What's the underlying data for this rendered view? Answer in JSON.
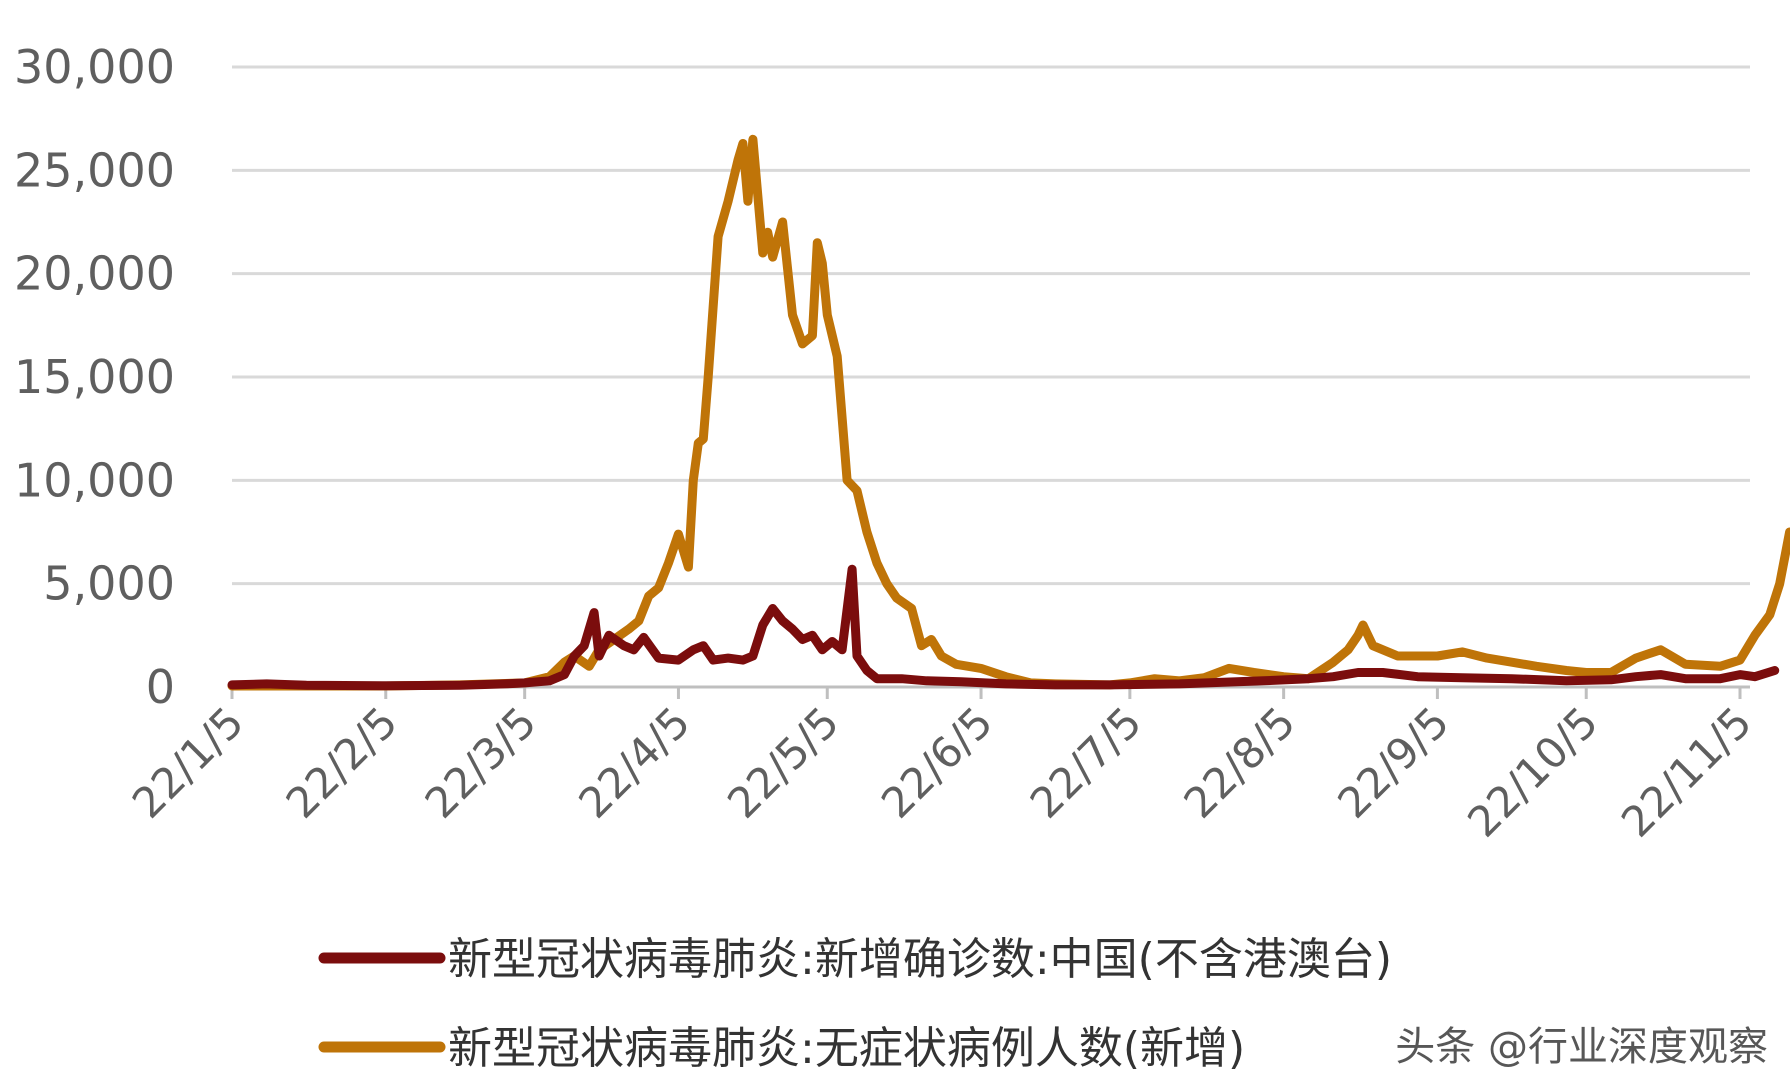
{
  "chart_data": {
    "type": "line",
    "title": "",
    "xlabel": "",
    "ylabel": "",
    "ylim": [
      0,
      30000
    ],
    "y_ticks": [
      "30,000",
      "25,000",
      "20,000",
      "15,000",
      "10,000",
      "5,000",
      "0"
    ],
    "y_tick_values": [
      30000,
      25000,
      20000,
      15000,
      10000,
      5000,
      0
    ],
    "x_tick_labels": [
      "22/1/5",
      "22/2/5",
      "22/3/5",
      "22/4/5",
      "22/5/5",
      "22/6/5",
      "22/7/5",
      "22/8/5",
      "22/9/5",
      "22/10/5",
      "22/11/5"
    ],
    "x_tick_dates": [
      "2022-01-05",
      "2022-02-05",
      "2022-03-05",
      "2022-04-05",
      "2022-05-05",
      "2022-06-05",
      "2022-07-05",
      "2022-08-05",
      "2022-09-05",
      "2022-10-05",
      "2022-11-05"
    ],
    "grid": "horizontal",
    "legend_position": "bottom",
    "series": [
      {
        "name": "新型冠状病毒肺炎:新增确诊数:中国(不含港澳台)",
        "color": "#7b0d0d",
        "points": [
          [
            "2022-01-05",
            100
          ],
          [
            "2022-01-12",
            150
          ],
          [
            "2022-01-20",
            80
          ],
          [
            "2022-02-05",
            60
          ],
          [
            "2022-02-20",
            80
          ],
          [
            "2022-03-01",
            150
          ],
          [
            "2022-03-05",
            200
          ],
          [
            "2022-03-10",
            300
          ],
          [
            "2022-03-13",
            600
          ],
          [
            "2022-03-15",
            1500
          ],
          [
            "2022-03-17",
            2000
          ],
          [
            "2022-03-19",
            3600
          ],
          [
            "2022-03-20",
            1500
          ],
          [
            "2022-03-22",
            2500
          ],
          [
            "2022-03-25",
            2000
          ],
          [
            "2022-03-27",
            1800
          ],
          [
            "2022-03-29",
            2400
          ],
          [
            "2022-04-01",
            1400
          ],
          [
            "2022-04-05",
            1300
          ],
          [
            "2022-04-08",
            1800
          ],
          [
            "2022-04-10",
            2000
          ],
          [
            "2022-04-12",
            1300
          ],
          [
            "2022-04-15",
            1400
          ],
          [
            "2022-04-18",
            1300
          ],
          [
            "2022-04-20",
            1500
          ],
          [
            "2022-04-22",
            3000
          ],
          [
            "2022-04-24",
            3800
          ],
          [
            "2022-04-26",
            3200
          ],
          [
            "2022-04-28",
            2800
          ],
          [
            "2022-04-30",
            2300
          ],
          [
            "2022-05-02",
            2500
          ],
          [
            "2022-05-04",
            1800
          ],
          [
            "2022-05-06",
            2200
          ],
          [
            "2022-05-08",
            1800
          ],
          [
            "2022-05-10",
            5700
          ],
          [
            "2022-05-11",
            1500
          ],
          [
            "2022-05-13",
            800
          ],
          [
            "2022-05-15",
            400
          ],
          [
            "2022-05-20",
            400
          ],
          [
            "2022-05-25",
            300
          ],
          [
            "2022-06-01",
            250
          ],
          [
            "2022-06-10",
            150
          ],
          [
            "2022-06-20",
            100
          ],
          [
            "2022-07-01",
            100
          ],
          [
            "2022-07-15",
            150
          ],
          [
            "2022-08-01",
            300
          ],
          [
            "2022-08-10",
            400
          ],
          [
            "2022-08-15",
            500
          ],
          [
            "2022-08-20",
            700
          ],
          [
            "2022-08-25",
            700
          ],
          [
            "2022-09-01",
            500
          ],
          [
            "2022-09-10",
            450
          ],
          [
            "2022-09-20",
            400
          ],
          [
            "2022-10-01",
            300
          ],
          [
            "2022-10-10",
            350
          ],
          [
            "2022-10-15",
            500
          ],
          [
            "2022-10-20",
            600
          ],
          [
            "2022-10-25",
            400
          ],
          [
            "2022-11-01",
            400
          ],
          [
            "2022-11-05",
            600
          ],
          [
            "2022-11-08",
            500
          ],
          [
            "2022-11-12",
            800
          ]
        ]
      },
      {
        "name": "新型冠状病毒肺炎:无症状病例人数(新增)",
        "color": "#bf7408",
        "points": [
          [
            "2022-01-05",
            50
          ],
          [
            "2022-02-05",
            50
          ],
          [
            "2022-02-20",
            100
          ],
          [
            "2022-03-05",
            200
          ],
          [
            "2022-03-10",
            500
          ],
          [
            "2022-03-13",
            1200
          ],
          [
            "2022-03-15",
            1500
          ],
          [
            "2022-03-18",
            1000
          ],
          [
            "2022-03-20",
            1800
          ],
          [
            "2022-03-23",
            2300
          ],
          [
            "2022-03-26",
            2800
          ],
          [
            "2022-03-28",
            3200
          ],
          [
            "2022-03-30",
            4400
          ],
          [
            "2022-04-01",
            4800
          ],
          [
            "2022-04-03",
            6000
          ],
          [
            "2022-04-05",
            7400
          ],
          [
            "2022-04-07",
            5800
          ],
          [
            "2022-04-08",
            10000
          ],
          [
            "2022-04-09",
            11800
          ],
          [
            "2022-04-10",
            12000
          ],
          [
            "2022-04-11",
            15000
          ],
          [
            "2022-04-13",
            21800
          ],
          [
            "2022-04-15",
            23500
          ],
          [
            "2022-04-17",
            25500
          ],
          [
            "2022-04-18",
            26300
          ],
          [
            "2022-04-19",
            23500
          ],
          [
            "2022-04-20",
            26500
          ],
          [
            "2022-04-22",
            21000
          ],
          [
            "2022-04-23",
            22000
          ],
          [
            "2022-04-24",
            20800
          ],
          [
            "2022-04-26",
            22500
          ],
          [
            "2022-04-28",
            18000
          ],
          [
            "2022-04-30",
            16600
          ],
          [
            "2022-05-02",
            17000
          ],
          [
            "2022-05-03",
            21500
          ],
          [
            "2022-05-04",
            20500
          ],
          [
            "2022-05-05",
            18000
          ],
          [
            "2022-05-07",
            16000
          ],
          [
            "2022-05-09",
            10000
          ],
          [
            "2022-05-11",
            9500
          ],
          [
            "2022-05-13",
            7500
          ],
          [
            "2022-05-15",
            6000
          ],
          [
            "2022-05-17",
            5000
          ],
          [
            "2022-05-19",
            4300
          ],
          [
            "2022-05-22",
            3800
          ],
          [
            "2022-05-24",
            2000
          ],
          [
            "2022-05-26",
            2300
          ],
          [
            "2022-05-28",
            1500
          ],
          [
            "2022-05-31",
            1100
          ],
          [
            "2022-06-05",
            900
          ],
          [
            "2022-06-10",
            500
          ],
          [
            "2022-06-15",
            200
          ],
          [
            "2022-06-20",
            150
          ],
          [
            "2022-07-01",
            100
          ],
          [
            "2022-07-05",
            200
          ],
          [
            "2022-07-10",
            400
          ],
          [
            "2022-07-15",
            300
          ],
          [
            "2022-07-20",
            450
          ],
          [
            "2022-07-25",
            900
          ],
          [
            "2022-07-30",
            700
          ],
          [
            "2022-08-05",
            500
          ],
          [
            "2022-08-10",
            400
          ],
          [
            "2022-08-15",
            1200
          ],
          [
            "2022-08-18",
            1800
          ],
          [
            "2022-08-20",
            2500
          ],
          [
            "2022-08-21",
            3000
          ],
          [
            "2022-08-23",
            2000
          ],
          [
            "2022-08-28",
            1500
          ],
          [
            "2022-09-05",
            1500
          ],
          [
            "2022-09-10",
            1700
          ],
          [
            "2022-09-15",
            1400
          ],
          [
            "2022-09-20",
            1200
          ],
          [
            "2022-09-25",
            1000
          ],
          [
            "2022-10-01",
            800
          ],
          [
            "2022-10-05",
            700
          ],
          [
            "2022-10-10",
            700
          ],
          [
            "2022-10-15",
            1400
          ],
          [
            "2022-10-20",
            1800
          ],
          [
            "2022-10-25",
            1100
          ],
          [
            "2022-11-01",
            1000
          ],
          [
            "2022-11-05",
            1300
          ],
          [
            "2022-11-08",
            2500
          ],
          [
            "2022-11-11",
            3500
          ],
          [
            "2022-11-13",
            5000
          ],
          [
            "2022-11-15",
            7500
          ]
        ]
      }
    ]
  },
  "watermark": "头条 @行业深度观察"
}
